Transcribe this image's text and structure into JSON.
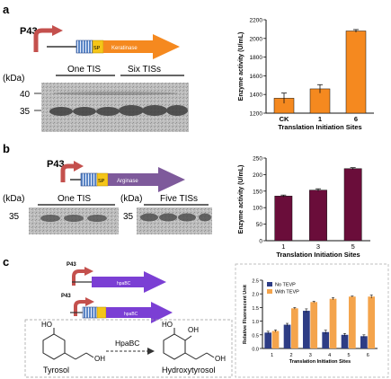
{
  "figure": {
    "panels": [
      {
        "id": "a",
        "label": "a",
        "promoter": "P43",
        "construct_labels": [
          "SP",
          "Keratinase"
        ],
        "gel": {
          "unit": "(kDa)",
          "markers": [
            "40",
            "35"
          ],
          "lane_groups": [
            "One TIS",
            "Six TISs"
          ]
        }
      },
      {
        "id": "b",
        "label": "b",
        "promoter": "P43",
        "construct_labels": [
          "SP",
          "Arginase"
        ],
        "gel_left": {
          "unit": "(kDa)",
          "markers": [
            "35"
          ],
          "lane_group": "One TIS"
        },
        "gel_right": {
          "unit": "(kDa)",
          "markers": [
            "35"
          ],
          "lane_group": "Five TISs"
        }
      },
      {
        "id": "c",
        "label": "c",
        "promoters": [
          "P43",
          "P43"
        ],
        "construct_labels": [
          "hpaBC",
          "hpaBC"
        ],
        "reaction": {
          "substrate": "Tyrosol",
          "enzyme": "HpaBC",
          "product": "Hydroxytyrosol",
          "atom_labels": [
            "HO",
            "OH",
            "HO",
            "OH",
            "OH"
          ]
        }
      }
    ],
    "colors": {
      "orange": "#f5891f",
      "maroon": "#6a0d3a",
      "purple": "#7b3fd4",
      "navy": "#2e3d85",
      "lightorange": "#f4a44c",
      "arrow_red": "#c4504d",
      "tis_blue": "#5b86c6"
    }
  },
  "chart_data": [
    {
      "type": "bar",
      "panel": "a",
      "categories": [
        "CK",
        "1",
        "6"
      ],
      "values": [
        1360,
        1460,
        2080
      ],
      "errors": [
        55,
        45,
        15
      ],
      "color": "#f5891f",
      "xlabel": "Translation Initiation Sites",
      "ylabel": "Enzyme activity (U/mL)",
      "ylim": [
        1200,
        2200
      ],
      "yticks": [
        1200,
        1400,
        1600,
        1800,
        2000,
        2200
      ],
      "grid": false
    },
    {
      "type": "bar",
      "panel": "b",
      "categories": [
        "1",
        "3",
        "5"
      ],
      "values": [
        135,
        153,
        218
      ],
      "errors": [
        3,
        4,
        3
      ],
      "color": "#6a0d3a",
      "xlabel": "Translation Initiation Sites",
      "ylabel": "Enzyme activity (U/mL)",
      "ylim": [
        0,
        250
      ],
      "yticks": [
        0,
        50,
        100,
        150,
        200,
        250
      ],
      "grid": false
    },
    {
      "type": "bar",
      "panel": "c",
      "categories": [
        "1",
        "2",
        "3",
        "4",
        "5",
        "6"
      ],
      "series": [
        {
          "name": "No TEVP",
          "values": [
            0.58,
            0.87,
            1.38,
            0.6,
            0.5,
            0.45
          ],
          "errors": [
            0.05,
            0.05,
            0.07,
            0.07,
            0.05,
            0.05
          ],
          "color": "#2e3d85"
        },
        {
          "name": "With TEVP",
          "values": [
            0.64,
            1.47,
            1.7,
            1.82,
            1.9,
            1.9
          ],
          "errors": [
            0.04,
            0.03,
            0.03,
            0.04,
            0.02,
            0.06
          ],
          "color": "#f4a44c"
        }
      ],
      "xlabel": "Translation Initiation Sites",
      "ylabel": "Relative Fluorescent Unit",
      "ylim": [
        0,
        2.5
      ],
      "yticks": [
        "0.0",
        "0.5",
        "1.0",
        "1.5",
        "2.0",
        "2.5"
      ],
      "legend": "top-left",
      "grid": false
    }
  ]
}
